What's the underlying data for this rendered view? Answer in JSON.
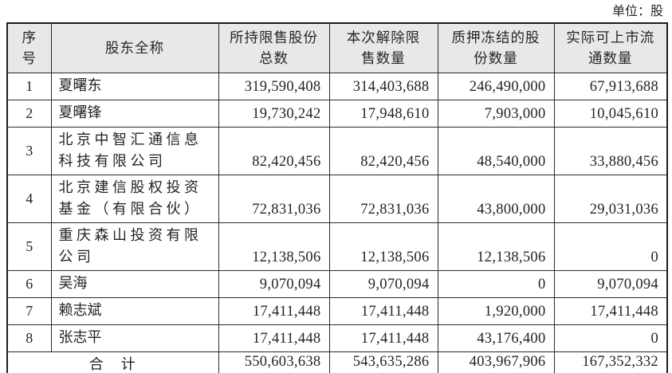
{
  "unit_label": "单位：股",
  "table": {
    "headers": {
      "no": "序\n号",
      "name": "股东全称",
      "held": "所持限售股份\n总数",
      "released": "本次解除限\n售数量",
      "pledged": "质押冻结的股\n份数量",
      "tradable": "实际可上市流\n通数量"
    },
    "rows": [
      {
        "no": "1",
        "name": "夏曙东",
        "held": "319,590,408",
        "released": "314,403,688",
        "pledged": "246,490,000",
        "tradable": "67,913,688"
      },
      {
        "no": "2",
        "name": "夏曙锋",
        "held": "19,730,242",
        "released": "17,948,610",
        "pledged": "7,903,000",
        "tradable": "10,045,610"
      },
      {
        "no": "3",
        "name": "北京中智汇通信息\n科技有限公司",
        "held": "82,420,456",
        "released": "82,420,456",
        "pledged": "48,540,000",
        "tradable": "33,880,456"
      },
      {
        "no": "4",
        "name": "北京建信股权投资\n基金（有限合伙）",
        "held": "72,831,036",
        "released": "72,831,036",
        "pledged": "43,800,000",
        "tradable": "29,031,036"
      },
      {
        "no": "5",
        "name": "重庆森山投资有限\n公司",
        "held": "12,138,506",
        "released": "12,138,506",
        "pledged": "12,138,506",
        "tradable": "0"
      },
      {
        "no": "6",
        "name": "吴海",
        "held": "9,070,094",
        "released": "9,070,094",
        "pledged": "0",
        "tradable": "9,070,094"
      },
      {
        "no": "7",
        "name": "赖志斌",
        "held": "17,411,448",
        "released": "17,411,448",
        "pledged": "1,920,000",
        "tradable": "17,411,448"
      },
      {
        "no": "8",
        "name": "张志平",
        "held": "17,411,448",
        "released": "17,411,448",
        "pledged": "43,176,400",
        "tradable": "0"
      }
    ],
    "total": {
      "label": "合　计",
      "held": "550,603,638",
      "released": "543,635,286",
      "pledged": "403,967,906",
      "tradable": "167,352,332"
    }
  }
}
